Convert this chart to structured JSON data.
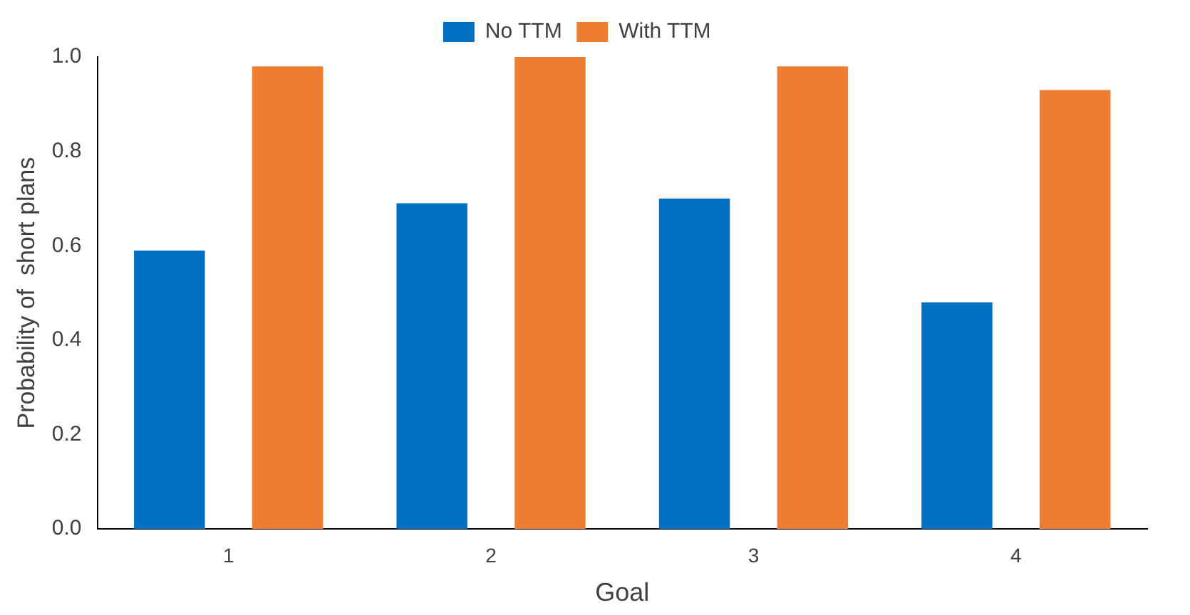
{
  "chart_data": {
    "type": "bar",
    "xlabel": "Goal",
    "ylabel": "Probability of  short plans",
    "categories": [
      "1",
      "2",
      "3",
      "4"
    ],
    "series": [
      {
        "name": "No TTM",
        "color": "#0070c0",
        "values": [
          0.59,
          0.69,
          0.7,
          0.48
        ]
      },
      {
        "name": "With TTM",
        "color": "#ed7d31",
        "values": [
          0.98,
          1.0,
          0.98,
          0.93
        ]
      }
    ],
    "ylim": [
      0,
      1
    ],
    "yticks": [
      {
        "value": 0,
        "label": "0.0"
      },
      {
        "value": 0.2,
        "label": "0.2"
      },
      {
        "value": 0.4,
        "label": "0.4"
      },
      {
        "value": 0.6,
        "label": "0.6"
      },
      {
        "value": 0.8,
        "label": "0.8"
      },
      {
        "value": 1,
        "label": "1.0"
      }
    ],
    "grid": false,
    "legend": "top"
  }
}
